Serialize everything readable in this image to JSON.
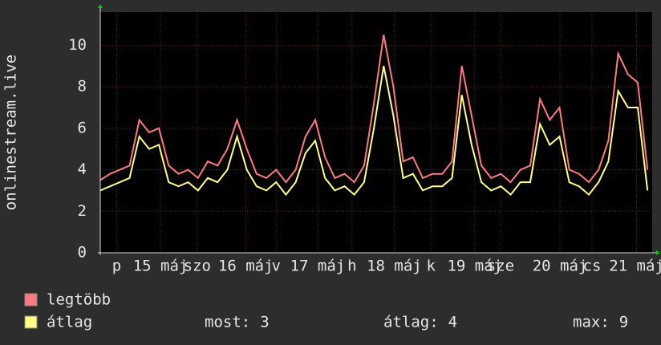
{
  "chart_data": {
    "type": "line",
    "ylabel": "onlinestream.live",
    "xlim": [
      0,
      7.06
    ],
    "ylim": [
      0,
      11.6
    ],
    "yticks": [
      0,
      2,
      4,
      6,
      8,
      10
    ],
    "xticks": [
      {
        "value": 0.21,
        "label": "p"
      },
      {
        "value": 0.77,
        "label": "15 máj"
      },
      {
        "value": 1.24,
        "label": "szo"
      },
      {
        "value": 1.86,
        "label": "16 máj"
      },
      {
        "value": 2.25,
        "label": "v"
      },
      {
        "value": 2.78,
        "label": "17 máj"
      },
      {
        "value": 3.22,
        "label": "h"
      },
      {
        "value": 3.76,
        "label": "18 máj"
      },
      {
        "value": 4.23,
        "label": "k"
      },
      {
        "value": 4.79,
        "label": "19 máj"
      },
      {
        "value": 5.12,
        "label": "sze"
      },
      {
        "value": 5.88,
        "label": "20 máj"
      },
      {
        "value": 6.29,
        "label": "cs"
      },
      {
        "value": 6.86,
        "label": "21 máj"
      }
    ],
    "grid": true,
    "x": [
      0,
      0.125,
      0.25,
      0.375,
      0.5,
      0.625,
      0.75,
      0.875,
      1,
      1.125,
      1.25,
      1.375,
      1.5,
      1.625,
      1.75,
      1.875,
      2,
      2.125,
      2.25,
      2.375,
      2.5,
      2.625,
      2.75,
      2.875,
      3,
      3.125,
      3.25,
      3.375,
      3.5,
      3.625,
      3.75,
      3.875,
      4,
      4.125,
      4.25,
      4.375,
      4.5,
      4.625,
      4.75,
      4.875,
      5,
      5.125,
      5.25,
      5.375,
      5.5,
      5.625,
      5.75,
      5.875,
      6,
      6.125,
      6.25,
      6.375,
      6.5,
      6.625,
      6.75,
      6.875,
      7
    ],
    "series": [
      {
        "name": "legtöbb",
        "color": "#ff7a80",
        "values": [
          3.5,
          3.8,
          4.0,
          4.2,
          6.4,
          5.8,
          6.0,
          4.2,
          3.8,
          4.0,
          3.6,
          4.4,
          4.2,
          5.0,
          6.4,
          5.0,
          3.8,
          3.6,
          4.0,
          3.4,
          4.0,
          5.6,
          6.4,
          4.6,
          3.6,
          3.8,
          3.4,
          4.2,
          7.2,
          10.5,
          8.0,
          4.4,
          4.6,
          3.6,
          3.8,
          3.8,
          4.4,
          9.0,
          6.6,
          4.2,
          3.6,
          3.8,
          3.4,
          4.0,
          4.2,
          7.4,
          6.4,
          7.0,
          4.0,
          3.8,
          3.4,
          4.0,
          5.4,
          9.6,
          8.6,
          8.2,
          4.0
        ]
      },
      {
        "name": "átlag",
        "color": "#ffff80",
        "values": [
          3.0,
          3.2,
          3.4,
          3.6,
          5.6,
          5.0,
          5.2,
          3.4,
          3.2,
          3.4,
          3.0,
          3.6,
          3.4,
          4.0,
          5.6,
          4.0,
          3.2,
          3.0,
          3.4,
          2.8,
          3.4,
          4.8,
          5.4,
          3.6,
          3.0,
          3.2,
          2.8,
          3.4,
          6.0,
          9.0,
          6.6,
          3.6,
          3.8,
          3.0,
          3.2,
          3.2,
          3.6,
          7.6,
          5.2,
          3.4,
          3.0,
          3.2,
          2.8,
          3.4,
          3.4,
          6.2,
          5.2,
          5.6,
          3.4,
          3.2,
          2.8,
          3.4,
          4.4,
          7.8,
          7.0,
          7.0,
          3.0
        ]
      }
    ],
    "stats": [
      {
        "label": "most:",
        "value": 3
      },
      {
        "label": "átlag:",
        "value": 4
      },
      {
        "label": "max:",
        "value": 9
      }
    ]
  }
}
